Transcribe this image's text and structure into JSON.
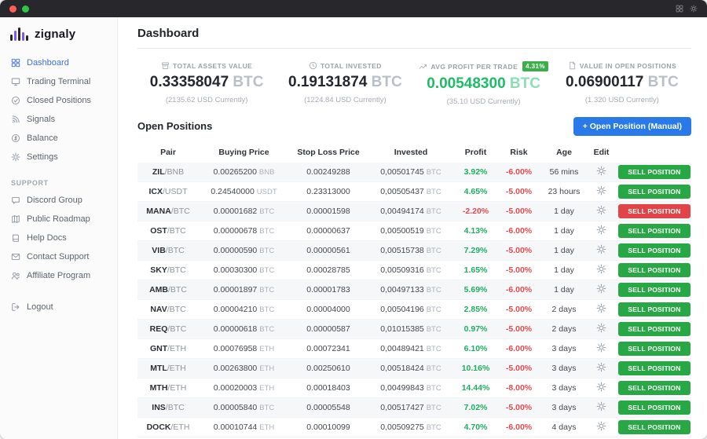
{
  "colors": {
    "accent_blue": "#2979e8",
    "nav_active": "#3b6fe0",
    "green": "#1fae60",
    "green_bright": "#1dbd67",
    "green_button": "#28a745",
    "red": "#e4494e",
    "red_button": "#e04348",
    "badge_green": "#3cae4a"
  },
  "window": {
    "traffic_lights": [
      "#ff5f57",
      "#2ac940"
    ],
    "titlebar_icons": [
      "grid-icon",
      "gear-icon"
    ]
  },
  "sidebar": {
    "logo_text": "zignaly",
    "nav": [
      {
        "label": "Dashboard",
        "icon": "dashboard-icon",
        "active": true
      },
      {
        "label": "Trading Terminal",
        "icon": "terminal-icon",
        "active": false
      },
      {
        "label": "Closed Positions",
        "icon": "closed-positions-icon",
        "active": false
      },
      {
        "label": "Signals",
        "icon": "signals-icon",
        "active": false
      },
      {
        "label": "Balance",
        "icon": "balance-icon",
        "active": false
      },
      {
        "label": "Settings",
        "icon": "settings-icon",
        "active": false
      }
    ],
    "support_label": "SUPPORT",
    "support": [
      {
        "label": "Discord Group",
        "icon": "discord-icon",
        "active": false
      },
      {
        "label": "Public Roadmap",
        "icon": "roadmap-icon",
        "active": false
      },
      {
        "label": "Help Docs",
        "icon": "help-icon",
        "active": false
      },
      {
        "label": "Contact Support",
        "icon": "contact-icon",
        "active": false
      },
      {
        "label": "Affiliate Program",
        "icon": "affiliate-icon",
        "active": false
      }
    ],
    "logout": {
      "label": "Logout",
      "icon": "logout-icon",
      "active": false
    }
  },
  "header": {
    "title": "Dashboard"
  },
  "stats": [
    {
      "label": "TOTAL ASSETS VALUE",
      "icon": "assets-icon",
      "value": "0.33358047",
      "currency": "BTC",
      "sub": "(2135.62 USD Currently)",
      "highlight": false,
      "badge": ""
    },
    {
      "label": "TOTAL INVESTED",
      "icon": "clock-icon",
      "value": "0.19131874",
      "currency": "BTC",
      "sub": "(1224.84 USD Currently)",
      "highlight": false,
      "badge": ""
    },
    {
      "label": "AVG PROFIT PER TRADE",
      "icon": "trend-up-icon",
      "value": "0.00548300",
      "currency": "BTC",
      "sub": "(35.10 USD Currently)",
      "highlight": true,
      "badge": "4.31%"
    },
    {
      "label": "VALUE IN OPEN POSITIONS",
      "icon": "file-icon",
      "value": "0.06900117",
      "currency": "BTC",
      "sub": "(1.320 USD Currently)",
      "highlight": false,
      "badge": ""
    }
  ],
  "positions": {
    "title": "Open Positions",
    "open_button": "+ Open Position (Manual)",
    "sell_label": "SELL POSITION",
    "columns": [
      "Pair",
      "Buying Price",
      "Stop Loss Price",
      "Invested",
      "Profit",
      "Risk",
      "Age",
      "Edit",
      ""
    ],
    "rows": [
      {
        "base": "ZIL",
        "quote": "BNB",
        "buying_price": "0.00265200",
        "buying_currency": "BNB",
        "stop_loss": "0.00249288",
        "invested": "0,00501745",
        "invested_currency": "BTC",
        "profit": "3.92%",
        "profit_positive": true,
        "risk": "-6.00%",
        "age": "56 mins",
        "action": "green"
      },
      {
        "base": "ICX",
        "quote": "USDT",
        "buying_price": "0.24540000",
        "buying_currency": "USDT",
        "stop_loss": "0.23313000",
        "invested": "0,00505437",
        "invested_currency": "BTC",
        "profit": "4.65%",
        "profit_positive": true,
        "risk": "-5.00%",
        "age": "23 hours",
        "action": "green"
      },
      {
        "base": "MANA",
        "quote": "BTC",
        "buying_price": "0.00001682",
        "buying_currency": "BTC",
        "stop_loss": "0.00001598",
        "invested": "0,00494174",
        "invested_currency": "BTC",
        "profit": "-2.20%",
        "profit_positive": false,
        "risk": "-5.00%",
        "age": "1 day",
        "action": "red"
      },
      {
        "base": "OST",
        "quote": "BTC",
        "buying_price": "0.00000678",
        "buying_currency": "BTC",
        "stop_loss": "0.00000637",
        "invested": "0,00500519",
        "invested_currency": "BTC",
        "profit": "4.13%",
        "profit_positive": true,
        "risk": "-6.00%",
        "age": "1 day",
        "action": "green"
      },
      {
        "base": "VIB",
        "quote": "BTC",
        "buying_price": "0.00000590",
        "buying_currency": "BTC",
        "stop_loss": "0.00000561",
        "invested": "0,00515738",
        "invested_currency": "BTC",
        "profit": "7.29%",
        "profit_positive": true,
        "risk": "-5.00%",
        "age": "1 day",
        "action": "green"
      },
      {
        "base": "SKY",
        "quote": "BTC",
        "buying_price": "0.00030300",
        "buying_currency": "BTC",
        "stop_loss": "0.00028785",
        "invested": "0,00509316",
        "invested_currency": "BTC",
        "profit": "1.65%",
        "profit_positive": true,
        "risk": "-5.00%",
        "age": "1 day",
        "action": "green"
      },
      {
        "base": "AMB",
        "quote": "BTC",
        "buying_price": "0.00001897",
        "buying_currency": "BTC",
        "stop_loss": "0.00001783",
        "invested": "0,00497133",
        "invested_currency": "BTC",
        "profit": "5.69%",
        "profit_positive": true,
        "risk": "-6.00%",
        "age": "1 day",
        "action": "green"
      },
      {
        "base": "NAV",
        "quote": "BTC",
        "buying_price": "0.00004210",
        "buying_currency": "BTC",
        "stop_loss": "0.00004000",
        "invested": "0,00504196",
        "invested_currency": "BTC",
        "profit": "2.85%",
        "profit_positive": true,
        "risk": "-5.00%",
        "age": "2 days",
        "action": "green"
      },
      {
        "base": "REQ",
        "quote": "BTC",
        "buying_price": "0.00000618",
        "buying_currency": "BTC",
        "stop_loss": "0.00000587",
        "invested": "0,01015385",
        "invested_currency": "BTC",
        "profit": "0.97%",
        "profit_positive": true,
        "risk": "-5.00%",
        "age": "2 days",
        "action": "green"
      },
      {
        "base": "GNT",
        "quote": "ETH",
        "buying_price": "0.00076958",
        "buying_currency": "ETH",
        "stop_loss": "0.00072341",
        "invested": "0,00489421",
        "invested_currency": "BTC",
        "profit": "6.10%",
        "profit_positive": true,
        "risk": "-6.00%",
        "age": "3 days",
        "action": "green"
      },
      {
        "base": "MTL",
        "quote": "ETH",
        "buying_price": "0.00263800",
        "buying_currency": "ETH",
        "stop_loss": "0.00250610",
        "invested": "0,00518424",
        "invested_currency": "BTC",
        "profit": "10.16%",
        "profit_positive": true,
        "risk": "-5.00%",
        "age": "3 days",
        "action": "green"
      },
      {
        "base": "MTH",
        "quote": "ETH",
        "buying_price": "0.00020003",
        "buying_currency": "ETH",
        "stop_loss": "0.00018403",
        "invested": "0,00499843",
        "invested_currency": "BTC",
        "profit": "14.44%",
        "profit_positive": true,
        "risk": "-8.00%",
        "age": "3 days",
        "action": "green"
      },
      {
        "base": "INS",
        "quote": "BTC",
        "buying_price": "0.00005840",
        "buying_currency": "BTC",
        "stop_loss": "0.00005548",
        "invested": "0,00517427",
        "invested_currency": "BTC",
        "profit": "7.02%",
        "profit_positive": true,
        "risk": "-5.00%",
        "age": "3 days",
        "action": "green"
      },
      {
        "base": "DOCK",
        "quote": "ETH",
        "buying_price": "0.00010744",
        "buying_currency": "ETH",
        "stop_loss": "0.00010099",
        "invested": "0,00509275",
        "invested_currency": "BTC",
        "profit": "4.70%",
        "profit_positive": true,
        "risk": "-6.00%",
        "age": "4 days",
        "action": "green"
      }
    ]
  }
}
